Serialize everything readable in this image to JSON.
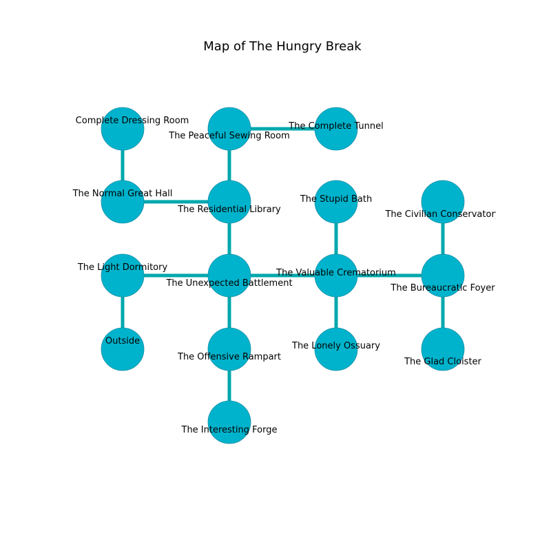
{
  "title": "Map of The Hungry Break",
  "colors": {
    "node_fill": "#00b3cc",
    "node_stroke": "#1a8fa6",
    "edge": "#00a8ad"
  },
  "rooms": [
    {
      "id": "dressing",
      "name": "Complete Dressing Room",
      "col": 0,
      "row": 0
    },
    {
      "id": "sewing",
      "name": "The Peaceful Sewing Room",
      "col": 1,
      "row": 0
    },
    {
      "id": "tunnel",
      "name": "The Complete Tunnel",
      "col": 2,
      "row": 0
    },
    {
      "id": "greathall",
      "name": "The Normal Great Hall",
      "col": 0,
      "row": 1
    },
    {
      "id": "library",
      "name": "The Residential Library",
      "col": 1,
      "row": 1
    },
    {
      "id": "bath",
      "name": "The Stupid Bath",
      "col": 2,
      "row": 1
    },
    {
      "id": "conservatory",
      "name": "The Civilian Conservatory",
      "col": 3,
      "row": 1
    },
    {
      "id": "dormitory",
      "name": "The Light Dormitory",
      "col": 0,
      "row": 2
    },
    {
      "id": "battlement",
      "name": "The Unexpected Battlement",
      "col": 1,
      "row": 2
    },
    {
      "id": "crematorium",
      "name": "The Valuable Crematorium",
      "col": 2,
      "row": 2
    },
    {
      "id": "foyer",
      "name": "The Bureaucratic Foyer",
      "col": 3,
      "row": 2
    },
    {
      "id": "outside",
      "name": "Outside",
      "col": 0,
      "row": 3
    },
    {
      "id": "rampart",
      "name": "The Offensive Rampart",
      "col": 1,
      "row": 3
    },
    {
      "id": "ossuary",
      "name": "The Lonely Ossuary",
      "col": 2,
      "row": 3
    },
    {
      "id": "cloister",
      "name": "The Glad Cloister",
      "col": 3,
      "row": 3
    },
    {
      "id": "forge",
      "name": "The Interesting Forge",
      "col": 1,
      "row": 4
    }
  ],
  "connections": [
    [
      "dressing",
      "greathall"
    ],
    [
      "sewing",
      "tunnel"
    ],
    [
      "sewing",
      "library"
    ],
    [
      "greathall",
      "library"
    ],
    [
      "library",
      "battlement"
    ],
    [
      "dormitory",
      "battlement"
    ],
    [
      "dormitory",
      "outside"
    ],
    [
      "battlement",
      "crematorium"
    ],
    [
      "battlement",
      "rampart"
    ],
    [
      "rampart",
      "forge"
    ],
    [
      "bath",
      "crematorium"
    ],
    [
      "crematorium",
      "ossuary"
    ],
    [
      "crematorium",
      "foyer"
    ],
    [
      "conservatory",
      "foyer"
    ],
    [
      "foyer",
      "cloister"
    ]
  ]
}
